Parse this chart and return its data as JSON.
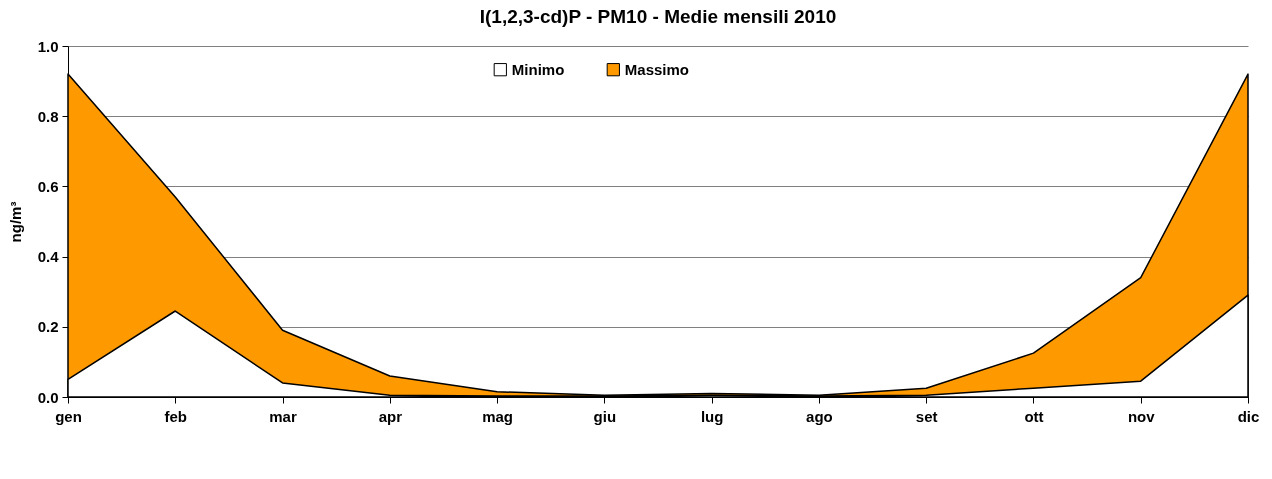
{
  "chart_data": {
    "type": "area",
    "title": "I(1,2,3-cd)P - PM10 - Medie mensili 2010",
    "ylabel": "ng/m³",
    "categories": [
      "gen",
      "feb",
      "mar",
      "apr",
      "mag",
      "giu",
      "lug",
      "ago",
      "set",
      "ott",
      "nov",
      "dic"
    ],
    "series": [
      {
        "name": "Minimo",
        "color": "#ffffff",
        "values": [
          0.05,
          0.245,
          0.04,
          0.005,
          0.003,
          0.003,
          0.005,
          0.003,
          0.005,
          0.025,
          0.045,
          0.29
        ]
      },
      {
        "name": "Massimo",
        "color": "#ff9900",
        "values": [
          0.92,
          0.57,
          0.19,
          0.06,
          0.015,
          0.005,
          0.01,
          0.005,
          0.025,
          0.125,
          0.34,
          0.92
        ]
      }
    ],
    "ylim": [
      0,
      1
    ],
    "yticks": [
      {
        "value": 0,
        "label": "0.0"
      },
      {
        "value": 0.2,
        "label": "0.2"
      },
      {
        "value": 0.4,
        "label": "0.4"
      },
      {
        "value": 0.6,
        "label": "0.6"
      },
      {
        "value": 0.8,
        "label": "0.8"
      },
      {
        "value": 1,
        "label": "1.0"
      }
    ],
    "grid": "y",
    "legend": "top"
  }
}
